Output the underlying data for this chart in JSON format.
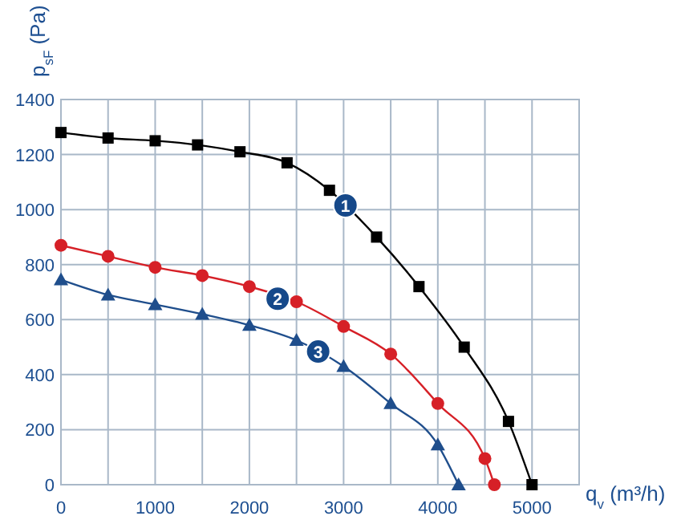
{
  "chart_data": {
    "type": "line",
    "xlabel": "q$_{v}$ (m³/h)",
    "ylabel": "p$_{sF}$ (Pa)",
    "xlim": [
      0,
      5500
    ],
    "ylim": [
      0,
      1400
    ],
    "xticks": [
      0,
      {
        "value": 500,
        "label": null
      },
      1000,
      {
        "value": 1500,
        "label": null
      },
      2000,
      {
        "value": 2500,
        "label": null
      },
      3000,
      {
        "value": 3500,
        "label": null
      },
      4000,
      {
        "value": 4500,
        "label": null
      },
      5000
    ],
    "yticks": [
      0,
      200,
      400,
      600,
      800,
      1000,
      1200,
      1400
    ],
    "grid": true,
    "line_style": "solid",
    "series": [
      {
        "color": "#000000",
        "marker": "square",
        "x": [
          0,
          500,
          1000,
          1450,
          1900,
          2400,
          2850,
          3350,
          3800,
          4280,
          4750,
          5000
        ],
        "values": [
          1280,
          1260,
          1250,
          1235,
          1210,
          1170,
          1070,
          900,
          720,
          500,
          230,
          0
        ]
      },
      {
        "color": "#d62027",
        "marker": "circle",
        "x": [
          0,
          500,
          1000,
          1500,
          2000,
          2500,
          3000,
          3500,
          4000,
          4500,
          4600
        ],
        "values": [
          870,
          830,
          790,
          760,
          720,
          665,
          575,
          475,
          295,
          95,
          0
        ]
      },
      {
        "color": "#1f4e8c",
        "marker": "triangle",
        "x": [
          0,
          500,
          1000,
          1500,
          2000,
          2500,
          3000,
          3500,
          4000,
          4220
        ],
        "values": [
          745,
          690,
          655,
          620,
          580,
          525,
          430,
          295,
          145,
          0
        ]
      }
    ],
    "annotations": [
      {
        "text": "1",
        "x": 3020,
        "y": 1015
      },
      {
        "text": "2",
        "x": 2300,
        "y": 676
      },
      {
        "text": "3",
        "x": 2730,
        "y": 484
      }
    ]
  }
}
